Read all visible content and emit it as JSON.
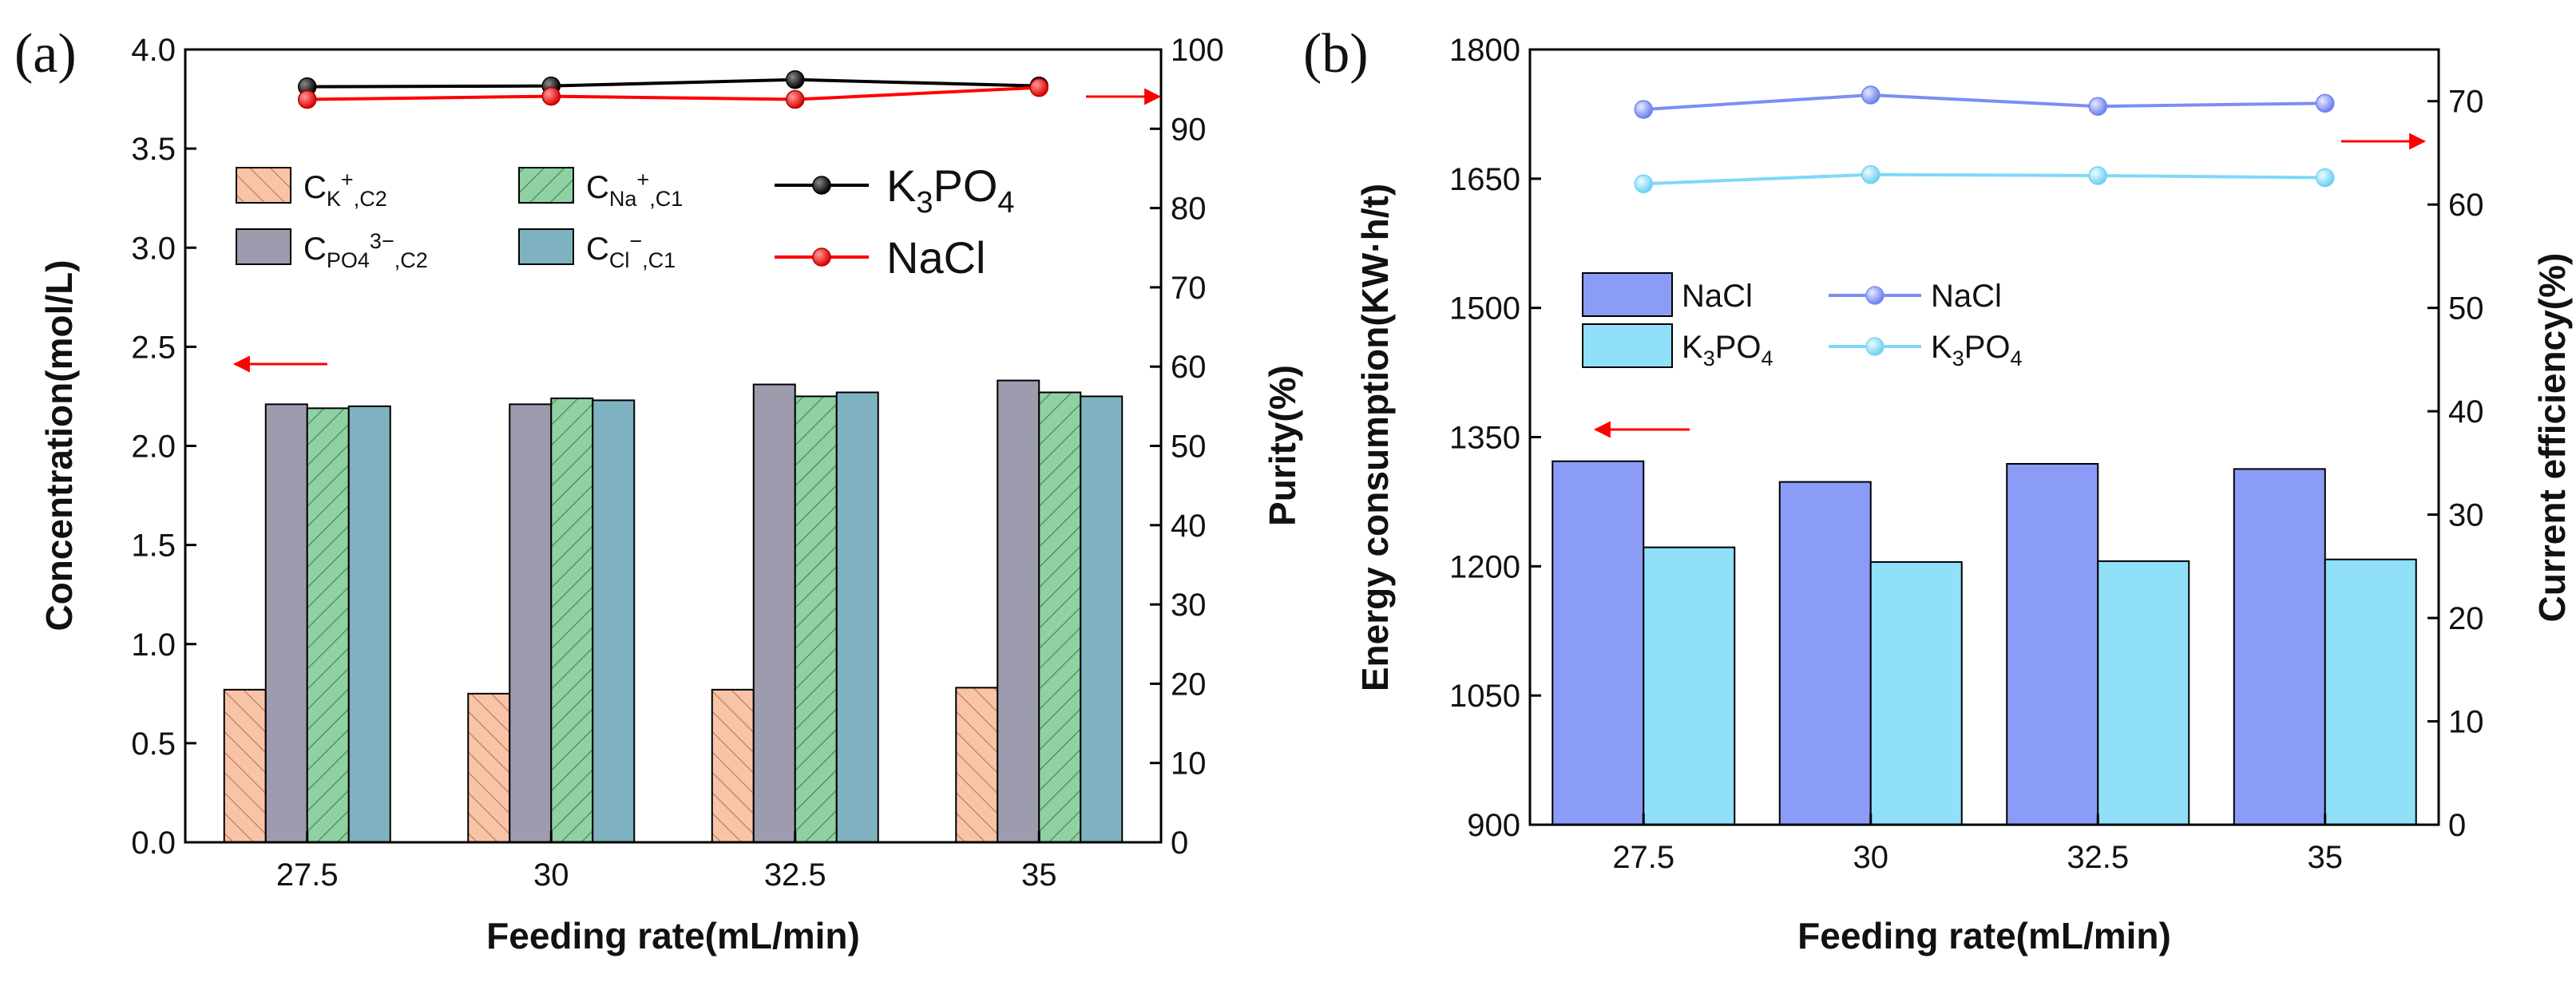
{
  "panels": [
    {
      "id": "a",
      "label": "(a)",
      "xlabel": "Feeding rate(mL/min)",
      "ylabel_left": "Concentration(mol/L)",
      "ylabel_right": "Purity(%)"
    },
    {
      "id": "b",
      "label": "(b)",
      "xlabel": "Feeding rate(mL/min)",
      "ylabel_left": "Energy consumption(KW·h/t)",
      "ylabel_right": "Current efficiency(%)"
    }
  ],
  "chart_data": [
    {
      "type": "bar",
      "panel": "a",
      "title": "",
      "xlabel": "Feeding rate(mL/min)",
      "ylabel": "Concentration(mol/L)",
      "ylim": [
        0,
        4.0
      ],
      "yticks": [
        "0.0",
        "0.5",
        "1.0",
        "1.5",
        "2.0",
        "2.5",
        "3.0",
        "3.5",
        "4.0"
      ],
      "categories": [
        "27.5",
        "30",
        "32.5",
        "35"
      ],
      "series": [
        {
          "name": "C_K+,C2",
          "main": "C",
          "sub": "K",
          "sup": "+",
          "sub2": ",C2",
          "color": "#f8c4a8",
          "hatch": "left",
          "values": [
            0.77,
            0.75,
            0.77,
            0.78
          ]
        },
        {
          "name": "C_PO4 3-,C2",
          "main": "C",
          "sub": "PO4",
          "sup": "3−",
          "sub2": ",C2",
          "color": "#9d9caf",
          "hatch": "none",
          "values": [
            2.21,
            2.21,
            2.31,
            2.33
          ]
        },
        {
          "name": "C_Na+,C1",
          "main": "C",
          "sub": "Na",
          "sup": "+",
          "sub2": ",C1",
          "color": "#8fd1a3",
          "hatch": "right",
          "values": [
            2.19,
            2.24,
            2.25,
            2.27
          ]
        },
        {
          "name": "C_Cl-,C1",
          "main": "C",
          "sub": "Cl",
          "sup": "−",
          "sub2": ",C1",
          "color": "#7fb2c0",
          "hatch": "none",
          "values": [
            2.2,
            2.23,
            2.27,
            2.25
          ]
        }
      ],
      "secondary_axis": {
        "type": "line",
        "ylabel": "Purity(%)",
        "ylim": [
          0,
          100
        ],
        "yticks": [
          "0",
          "10",
          "20",
          "30",
          "40",
          "50",
          "60",
          "70",
          "80",
          "90",
          "100"
        ],
        "series": [
          {
            "name": "K3PO4",
            "main": "K",
            "sub": "3",
            "rest": "PO",
            "sub2": "4",
            "color": "#000000",
            "values": [
              95.3,
              95.4,
              96.2,
              95.4
            ]
          },
          {
            "name": "NaCl",
            "main": "NaCl",
            "color": "#ff0000",
            "values": [
              93.7,
              94.1,
              93.7,
              95.2
            ]
          }
        ]
      },
      "legend_position": "upper-center"
    },
    {
      "type": "bar",
      "panel": "b",
      "title": "",
      "xlabel": "Feeding rate(mL/min)",
      "ylabel": "Energy consumption(KW·h/t)",
      "ylim": [
        900,
        1800
      ],
      "yticks": [
        "900",
        "1050",
        "1200",
        "1350",
        "1500",
        "1650",
        "1800"
      ],
      "categories": [
        "27.5",
        "30",
        "32.5",
        "35"
      ],
      "series": [
        {
          "name": "NaCl",
          "color": "#8b9cf7",
          "values": [
            1322,
            1298,
            1319,
            1313
          ]
        },
        {
          "name": "K3PO4",
          "color": "#8fe0f8",
          "values": [
            1222,
            1205,
            1206,
            1208
          ]
        }
      ],
      "secondary_axis": {
        "type": "line",
        "ylabel": "Current efficiency(%)",
        "ylim": [
          0,
          75
        ],
        "yticks": [
          "0",
          "10",
          "20",
          "30",
          "40",
          "50",
          "60",
          "70"
        ],
        "series": [
          {
            "name": "NaCl",
            "color": "#7b8ef2",
            "values": [
              69.2,
              70.6,
              69.5,
              69.8
            ]
          },
          {
            "name": "K3PO4",
            "color": "#80d8f6",
            "values": [
              62.0,
              62.9,
              62.8,
              62.6
            ]
          }
        ]
      },
      "legend_position": "center-left"
    }
  ]
}
